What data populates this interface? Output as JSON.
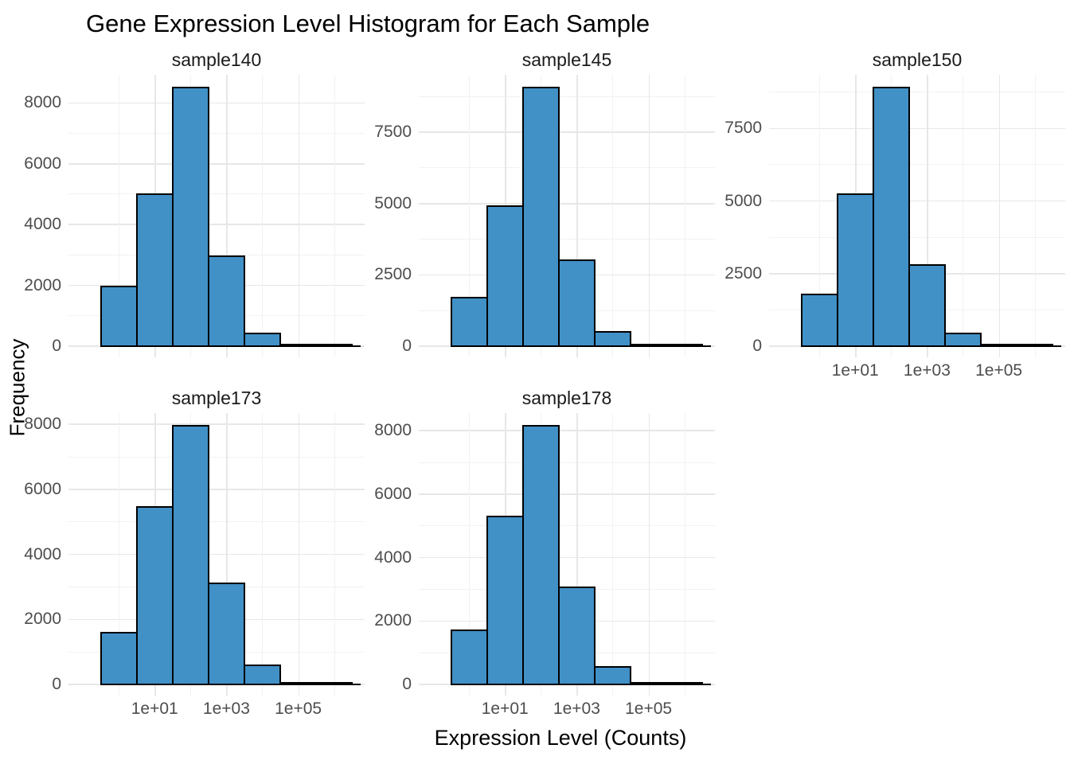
{
  "title": "Gene Expression Level Histogram for Each Sample",
  "axes": {
    "x_title": "Expression Level (Counts)",
    "y_title": "Frequency",
    "x_tick_labels": [
      "1e+01",
      "1e+03",
      "1e+05"
    ]
  },
  "colors": {
    "bar_fill": "#4190C6",
    "bar_border": "#000000",
    "grid_major": "#E7E7E7",
    "grid_minor": "#F2F2F2",
    "tick_text": "#4D4D4D",
    "title_text": "#000000"
  },
  "chart_data": {
    "type": "bar",
    "subtype": "faceted-histogram",
    "title": "Gene Expression Level Histogram for Each Sample",
    "xlabel": "Expression Level (Counts)",
    "ylabel": "Frequency",
    "x_scale": "log10",
    "grid": "on",
    "legend": "none",
    "bin_centers": [
      1,
      10,
      100,
      1000,
      10000,
      100000,
      1000000
    ],
    "bin_width_decades": 1,
    "x_major_ticks": [
      10,
      1000,
      100000
    ],
    "x_tick_labels": [
      "1e+01",
      "1e+03",
      "1e+05"
    ],
    "x_major_decades": [
      1,
      3,
      5
    ],
    "panels": [
      {
        "name": "sample140",
        "values": [
          1970,
          5000,
          8500,
          2950,
          430,
          60,
          15
        ],
        "y_ticks": [
          0,
          2000,
          4000,
          6000,
          8000
        ]
      },
      {
        "name": "sample145",
        "values": [
          1700,
          4900,
          9060,
          3000,
          500,
          50,
          15
        ],
        "y_ticks": [
          0,
          2500,
          5000,
          7500
        ]
      },
      {
        "name": "sample150",
        "values": [
          1780,
          5240,
          8900,
          2800,
          430,
          45,
          15
        ],
        "y_ticks": [
          0,
          2500,
          5000,
          7500
        ]
      },
      {
        "name": "sample173",
        "values": [
          1600,
          5450,
          7950,
          3100,
          600,
          45,
          15
        ],
        "y_ticks": [
          0,
          2000,
          4000,
          6000,
          8000
        ]
      },
      {
        "name": "sample178",
        "values": [
          1700,
          5300,
          8150,
          3050,
          550,
          45,
          15
        ],
        "y_ticks": [
          0,
          2000,
          4000,
          6000,
          8000
        ]
      }
    ]
  }
}
